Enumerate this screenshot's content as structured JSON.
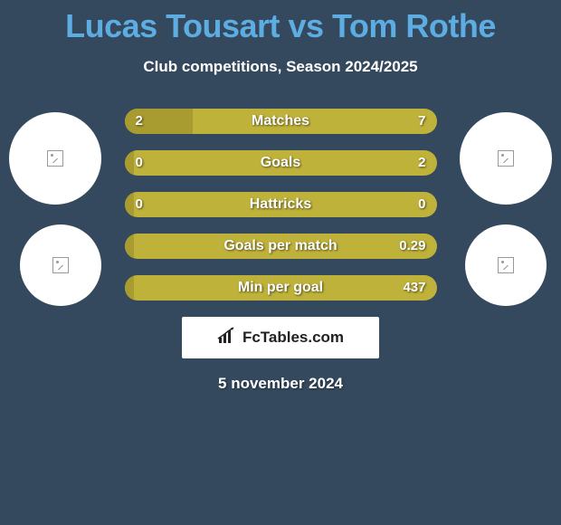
{
  "title": "Lucas Tousart vs Tom Rothe",
  "subtitle": "Club competitions, Season 2024/2025",
  "date": "5 november 2024",
  "footer_brand": "FcTables.com",
  "colors": {
    "background": "#34495e",
    "title": "#5dade2",
    "text": "#ffffff",
    "bar_left": "#a89b2f",
    "bar_right": "#bfb23a",
    "footer_bg": "#ffffff"
  },
  "bars": [
    {
      "label": "Matches",
      "left_val": "2",
      "right_val": "7",
      "left_pct": 22,
      "right_pct": 78
    },
    {
      "label": "Goals",
      "left_val": "0",
      "right_val": "2",
      "left_pct": 3,
      "right_pct": 97
    },
    {
      "label": "Hattricks",
      "left_val": "0",
      "right_val": "0",
      "left_pct": 3,
      "right_pct": 97
    },
    {
      "label": "Goals per match",
      "left_val": "",
      "right_val": "0.29",
      "left_pct": 3,
      "right_pct": 97
    },
    {
      "label": "Min per goal",
      "left_val": "",
      "right_val": "437",
      "left_pct": 3,
      "right_pct": 97
    }
  ],
  "avatars": {
    "left": [
      {
        "name": "player1-photo"
      },
      {
        "name": "player1-club-logo"
      }
    ],
    "right": [
      {
        "name": "player2-photo"
      },
      {
        "name": "player2-club-logo"
      }
    ]
  }
}
